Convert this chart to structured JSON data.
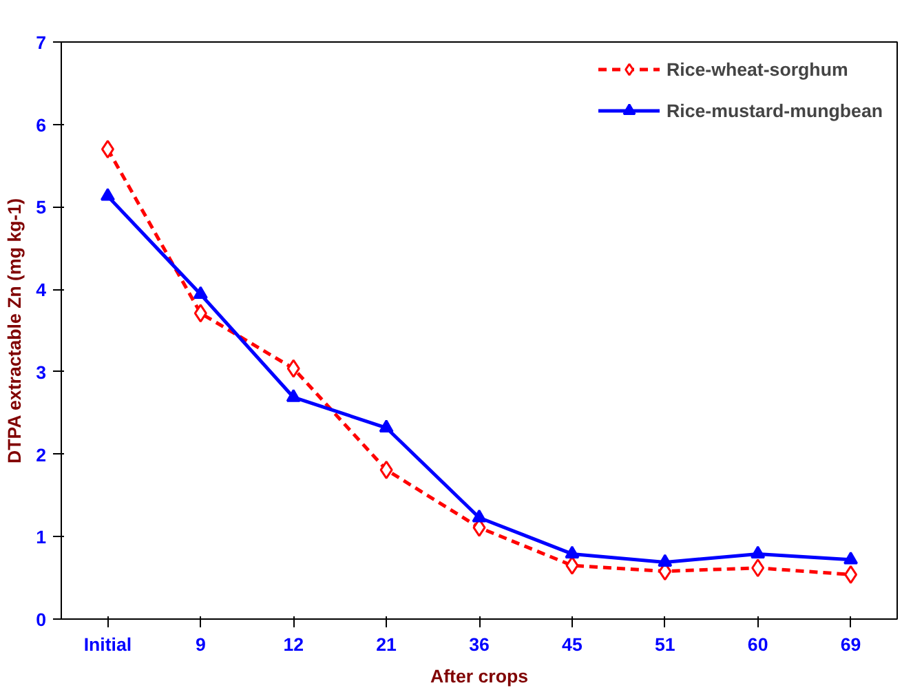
{
  "chart_data": {
    "type": "line",
    "xlabel": "After crops",
    "ylabel": "DTPA extractable Zn (mg kg-1)",
    "categories": [
      "Initial",
      "9",
      "12",
      "21",
      "36",
      "45",
      "51",
      "60",
      "69"
    ],
    "series": [
      {
        "name": "Rice-wheat-sorghum",
        "color": "#ff0000",
        "marker": "diamond",
        "line_style": "dashed",
        "values": [
          5.7,
          3.71,
          3.04,
          1.81,
          1.11,
          0.65,
          0.58,
          0.62,
          0.54
        ]
      },
      {
        "name": "Rice-mustard-mungbean",
        "color": "#0000ff",
        "marker": "triangle",
        "line_style": "solid",
        "values": [
          5.13,
          3.94,
          2.69,
          2.32,
          1.23,
          0.79,
          0.69,
          0.79,
          0.72
        ]
      }
    ],
    "ylim": [
      0,
      7
    ],
    "yticks": [
      0,
      1,
      2,
      3,
      4,
      5,
      6,
      7
    ],
    "grid": false,
    "legend": "top right"
  }
}
